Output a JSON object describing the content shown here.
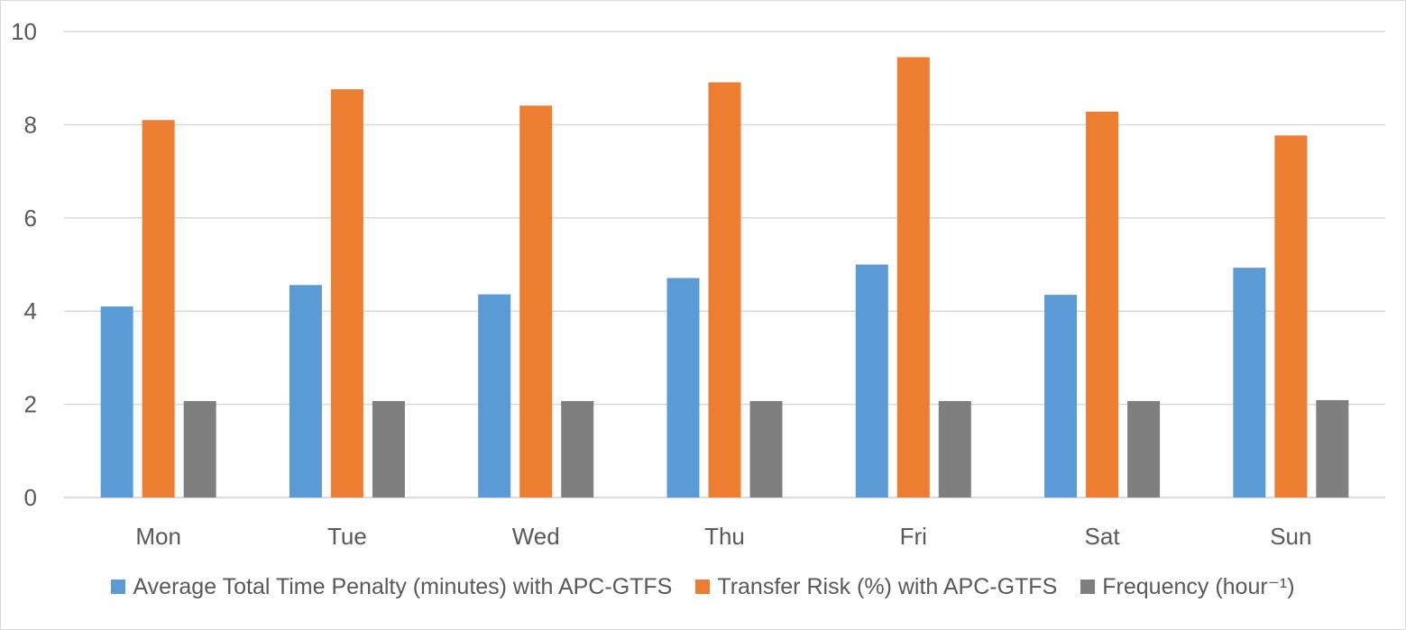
{
  "chart_data": {
    "type": "bar",
    "title": "",
    "xlabel": "",
    "ylabel": "",
    "categories": [
      "Mon",
      "Tue",
      "Wed",
      "Thu",
      "Fri",
      "Sat",
      "Sun"
    ],
    "series": [
      {
        "name": "Average Total Time Penalty (minutes) with APC-GTFS",
        "color": "#5b9bd5",
        "values": [
          4.1,
          4.56,
          4.36,
          4.71,
          5.0,
          4.35,
          4.93
        ]
      },
      {
        "name": "Transfer Risk (%) with APC-GTFS",
        "color": "#ed7d31",
        "values": [
          8.1,
          8.76,
          8.41,
          8.91,
          9.45,
          8.28,
          7.77
        ]
      },
      {
        "name": "Frequency (hour⁻¹)",
        "color": "#7f7f7f",
        "values": [
          2.07,
          2.07,
          2.07,
          2.07,
          2.07,
          2.07,
          2.09
        ]
      }
    ],
    "ylim": [
      0,
      10
    ],
    "yticks": [
      0,
      2,
      4,
      6,
      8,
      10
    ],
    "grid": true,
    "legend_position": "bottom"
  }
}
